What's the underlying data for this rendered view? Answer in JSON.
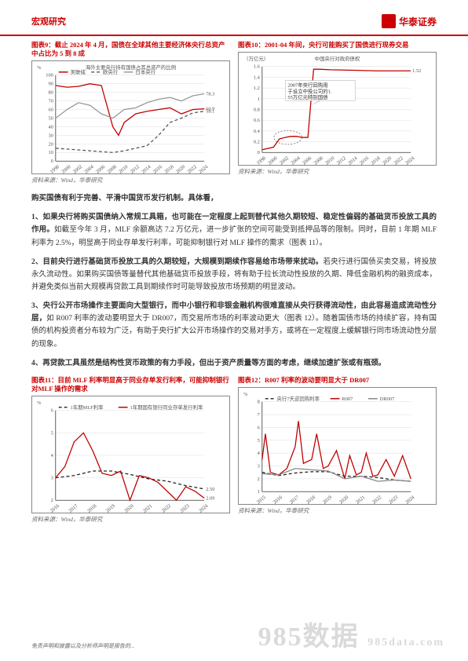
{
  "header": {
    "doc_type": "宏观研究",
    "brand": "华泰证券",
    "brand_en": "HUATAI SECURITIES"
  },
  "chart9": {
    "title": "图表9：截止 2024 年 4 月，国债在全球其他主要经济体央行总资产中占比为 5 到 8 成",
    "subtitle": "海外主要央行持有国债占其总资产的比例",
    "legend": [
      {
        "label": "美联储",
        "color": "#c00000",
        "dash": "none"
      },
      {
        "label": "欧央行",
        "color": "#555555",
        "dash": "4,3"
      },
      {
        "label": "日本央行",
        "color": "#999999",
        "dash": "none"
      }
    ],
    "y_axis": {
      "ticks": [
        0,
        10,
        20,
        30,
        40,
        50,
        60,
        70,
        80,
        90,
        100
      ],
      "unit": "%"
    },
    "x_axis": {
      "ticks": [
        1998,
        2000,
        2002,
        2004,
        2006,
        2008,
        2010,
        2012,
        2014,
        2016,
        2018,
        2020,
        2022,
        2024
      ]
    },
    "end_labels": {
      "red": "60.9",
      "grey": "78.3",
      "dash": "58.1"
    },
    "series": {
      "fed": {
        "color": "#c00000",
        "pts": [
          [
            1998,
            88
          ],
          [
            2000,
            86
          ],
          [
            2002,
            87
          ],
          [
            2004,
            90
          ],
          [
            2006,
            88
          ],
          [
            2008,
            40
          ],
          [
            2009,
            30
          ],
          [
            2010,
            45
          ],
          [
            2012,
            55
          ],
          [
            2014,
            58
          ],
          [
            2016,
            60
          ],
          [
            2018,
            62
          ],
          [
            2020,
            55
          ],
          [
            2022,
            60
          ],
          [
            2024,
            60.9
          ]
        ]
      },
      "ecb": {
        "color": "#555555",
        "dash": "4,3",
        "pts": [
          [
            1998,
            15
          ],
          [
            2000,
            14
          ],
          [
            2004,
            12
          ],
          [
            2008,
            10
          ],
          [
            2010,
            12
          ],
          [
            2012,
            15
          ],
          [
            2014,
            18
          ],
          [
            2016,
            30
          ],
          [
            2018,
            45
          ],
          [
            2020,
            50
          ],
          [
            2022,
            56
          ],
          [
            2024,
            58.1
          ]
        ]
      },
      "boj": {
        "color": "#999999",
        "pts": [
          [
            1998,
            50
          ],
          [
            2000,
            60
          ],
          [
            2002,
            68
          ],
          [
            2004,
            65
          ],
          [
            2006,
            55
          ],
          [
            2008,
            50
          ],
          [
            2010,
            60
          ],
          [
            2012,
            62
          ],
          [
            2014,
            68
          ],
          [
            2016,
            72
          ],
          [
            2018,
            74
          ],
          [
            2020,
            70
          ],
          [
            2022,
            76
          ],
          [
            2024,
            78.3
          ]
        ]
      }
    },
    "source": "资料来源：Wind，华泰研究"
  },
  "chart10": {
    "title": "图表10：2001-04 年间，央行可能购买了国债进行现券交易",
    "subtitle": "中国央行对政府债权",
    "legend_color": "#c00000",
    "y_axis": {
      "ticks": [
        0,
        0.2,
        0.4,
        0.6,
        0.8,
        1.0,
        1.2,
        1.4,
        1.6
      ],
      "unit": "（万亿元）"
    },
    "x_axis": {
      "ticks": [
        1998,
        2000,
        2002,
        2004,
        2006,
        2008,
        2010,
        2012,
        2014,
        2016,
        2018,
        2020,
        2022,
        2024
      ]
    },
    "annotation": "2007年央行回购用于设立中投公司的1.55万亿元特别国债",
    "end_label": "1.52",
    "series": {
      "pboc": {
        "color": "#c00000",
        "pts": [
          [
            1998,
            0.05
          ],
          [
            2000,
            0.1
          ],
          [
            2001,
            0.25
          ],
          [
            2002,
            0.28
          ],
          [
            2003,
            0.3
          ],
          [
            2004,
            0.3
          ],
          [
            2005,
            0.28
          ],
          [
            2006,
            0.28
          ],
          [
            2007,
            1.55
          ],
          [
            2008,
            1.55
          ],
          [
            2010,
            1.54
          ],
          [
            2014,
            1.53
          ],
          [
            2018,
            1.52
          ],
          [
            2024,
            1.52
          ]
        ]
      }
    },
    "source": "资料来源：Wind，华泰研究"
  },
  "body": {
    "intro": "购买国债有利于完善、平滑中国货币发行机制。具体看，",
    "p1_bold": "1、如果央行将购买国债纳入常规工具箱，也可能在一定程度上起到替代其他久期较短、稳定性偏弱的基础货币投放工具的作用。",
    "p1_rest": "如截至今年 3 月，MLF 余额高达 7.2 万亿元，进一步扩张的空间可能受到抵押品等的限制。同时，目前 1 年期 MLF 利率为 2.5%，明显高于同业存单发行利率，可能抑制银行对 MLF 操作的需求（图表 11）。",
    "p2_bold": "2、目前央行进行基础货币投放工具的久期较短，大规模到期续作容易给市场带来扰动。",
    "p2_rest": "若央行进行国债买卖交易，将投放永久流动性。如果购买国债等量替代其他基础货币投放手段，将有助于拉长流动性投放的久期、降低金融机构的融资成本，并避免类似当前大规模再贷款工具到期续作时可能导致投放市场预期的明显波动。",
    "p3_bold": "3、央行公开市场操作主要面向大型银行，而中小银行和非银金融机构很难直接从央行获得流动性，由此容易造成流动性分层，",
    "p3_rest": "如 R007 利率的波动要明显大于 DR007，而交易所市场的利率波动更大（图表 12）。随着国债市场的持续扩容，持有国债的机构投资者分布较为广泛，有助于央行扩大公开市场操作的交易对手方，或将在一定程度上缓解银行同市场流动性分层的现象。",
    "p4_bold": "4、再贷款工具虽然是结构性货币政策的有力手段，但出于资产质量等方面的考虑，继续加速扩张或有瓶颈。"
  },
  "chart11": {
    "title": "图表11：目前 MLF 利率明显高于同业存单发行利率，可能抑制银行对MLF 操作的需求",
    "legend": [
      {
        "label": "1年期MLF利率",
        "color": "#222222",
        "dash": "4,3"
      },
      {
        "label": "1年期国有银行同业存单发行利率",
        "color": "#c00000",
        "dash": "none"
      }
    ],
    "y_axis": {
      "ticks": [
        2,
        3,
        4,
        5,
        6
      ],
      "unit": "%"
    },
    "x_axis": {
      "ticks": [
        2016,
        2017,
        2018,
        2019,
        2020,
        2021,
        2022,
        2023,
        2024
      ]
    },
    "end_labels": {
      "black": "2.50",
      "red": "2.09"
    },
    "series": {
      "mlf": {
        "color": "#222222",
        "dash": "4,3",
        "pts": [
          [
            2016,
            3.0
          ],
          [
            2017,
            3.1
          ],
          [
            2018,
            3.3
          ],
          [
            2019,
            3.3
          ],
          [
            2020,
            3.15
          ],
          [
            2021,
            2.95
          ],
          [
            2022,
            2.85
          ],
          [
            2023,
            2.65
          ],
          [
            2024,
            2.5
          ]
        ]
      },
      "ncd": {
        "color": "#c00000",
        "pts": [
          [
            2016,
            3.0
          ],
          [
            2016.5,
            3.5
          ],
          [
            2017,
            4.6
          ],
          [
            2017.5,
            5.0
          ],
          [
            2018,
            4.2
          ],
          [
            2018.5,
            3.2
          ],
          [
            2019,
            3.1
          ],
          [
            2019.5,
            3.3
          ],
          [
            2020,
            2.0
          ],
          [
            2020.5,
            3.1
          ],
          [
            2021,
            3.0
          ],
          [
            2021.5,
            2.8
          ],
          [
            2022,
            2.4
          ],
          [
            2022.5,
            2.0
          ],
          [
            2023,
            2.6
          ],
          [
            2023.5,
            2.4
          ],
          [
            2024,
            2.09
          ]
        ]
      }
    },
    "source": "资料来源：Wind，华泰研究"
  },
  "chart12": {
    "title": "图表12：R007 利率的波动要明显大于 DR007",
    "legend": [
      {
        "label": "央行7天逆回购利率",
        "color": "#222222",
        "dash": "4,3"
      },
      {
        "label": "R007",
        "color": "#c00000",
        "dash": "none"
      },
      {
        "label": "DR007",
        "color": "#888888",
        "dash": "none"
      }
    ],
    "y_axis": {
      "ticks": [
        1,
        2,
        3,
        4,
        5,
        6,
        7,
        8
      ],
      "unit": "%"
    },
    "x_axis": {
      "ticks": [
        2015,
        2016,
        2017,
        2018,
        2019,
        2020,
        2021,
        2022,
        2023,
        2024
      ]
    },
    "series": {
      "repo": {
        "color": "#222222",
        "dash": "4,3",
        "pts": [
          [
            2015,
            2.5
          ],
          [
            2016,
            2.25
          ],
          [
            2017,
            2.45
          ],
          [
            2018,
            2.55
          ],
          [
            2019,
            2.55
          ],
          [
            2020,
            2.2
          ],
          [
            2021,
            2.2
          ],
          [
            2022,
            2.1
          ],
          [
            2023,
            1.9
          ],
          [
            2024,
            1.8
          ]
        ]
      },
      "r007": {
        "color": "#c00000",
        "pts": [
          [
            2015,
            3.5
          ],
          [
            2015.2,
            5.5
          ],
          [
            2015.5,
            2.5
          ],
          [
            2016,
            2.3
          ],
          [
            2016.5,
            2.8
          ],
          [
            2017,
            4.5
          ],
          [
            2017.2,
            6.5
          ],
          [
            2017.5,
            3.2
          ],
          [
            2018,
            3.5
          ],
          [
            2018.3,
            5.5
          ],
          [
            2018.7,
            2.8
          ],
          [
            2019,
            3.0
          ],
          [
            2019.5,
            4.2
          ],
          [
            2020,
            2.0
          ],
          [
            2020.3,
            3.8
          ],
          [
            2020.7,
            2.3
          ],
          [
            2021,
            2.5
          ],
          [
            2021.3,
            4.0
          ],
          [
            2021.7,
            2.2
          ],
          [
            2022,
            2.3
          ],
          [
            2022.5,
            3.5
          ],
          [
            2023,
            2.2
          ],
          [
            2023.5,
            3.8
          ],
          [
            2024,
            2.0
          ]
        ]
      },
      "dr007": {
        "color": "#888888",
        "pts": [
          [
            2015,
            2.4
          ],
          [
            2016,
            2.3
          ],
          [
            2017,
            2.8
          ],
          [
            2018,
            2.7
          ],
          [
            2019,
            2.6
          ],
          [
            2020,
            2.0
          ],
          [
            2021,
            2.2
          ],
          [
            2022,
            1.8
          ],
          [
            2023,
            1.9
          ],
          [
            2024,
            1.8
          ]
        ]
      }
    },
    "source": "资料来源：Wind，华泰研究"
  },
  "watermark": {
    "main": "985数据",
    "sub": "985data.com"
  },
  "footer": "免责声明和披露以及分析师声明是报告的..."
}
